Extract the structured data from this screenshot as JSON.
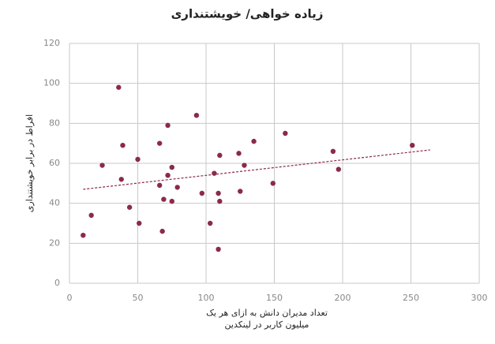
{
  "chart_data": {
    "type": "scatter",
    "title": "زیاده خواهی/ خویشتنداری",
    "x_label": [
      "تعداد مدیران دانش به ازای هر یک",
      "میلیون کاربر در لینکدین"
    ],
    "y_label": "افراط در برابر خویشتنداری",
    "color": "#8b2a4b",
    "x": [
      10,
      16,
      24,
      36,
      38,
      39,
      44,
      50,
      51,
      66,
      66,
      68,
      69,
      72,
      72,
      75,
      75,
      79,
      93,
      97,
      103,
      106,
      109,
      109,
      110,
      110,
      124,
      125,
      128,
      135,
      149,
      158,
      193,
      197,
      251
    ],
    "y": [
      24,
      34,
      59,
      98,
      52,
      69,
      38,
      62,
      30,
      49,
      70,
      26,
      42,
      79,
      54,
      58,
      41,
      48,
      84,
      45,
      30,
      55,
      45,
      17,
      64,
      41,
      65,
      46,
      59,
      71,
      50,
      75,
      66,
      57,
      69
    ],
    "trendline": {
      "x": [
        10,
        264
      ],
      "y": [
        47,
        66.7
      ],
      "color": "#8b2a4b"
    },
    "xlim": [
      0,
      300
    ],
    "xticks": [
      0,
      50,
      100,
      150,
      200,
      250,
      300
    ],
    "ylim": [
      0,
      120
    ],
    "yticks": [
      0,
      20,
      40,
      60,
      80,
      100,
      120
    ],
    "grid": true
  }
}
